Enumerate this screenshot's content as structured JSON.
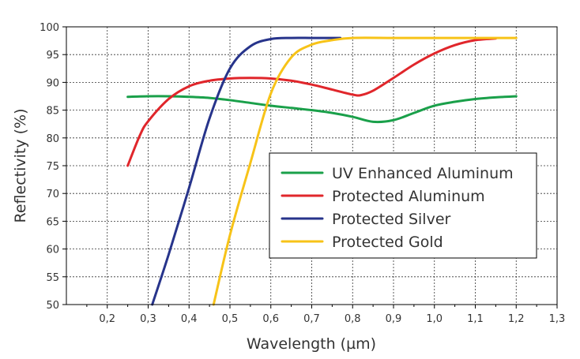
{
  "chart_data": {
    "type": "line",
    "title": "",
    "xlabel": "Wavelength (µm)",
    "ylabel": "Reflectivity (%)",
    "xlim": [
      0.1,
      1.3
    ],
    "ylim": [
      50,
      100
    ],
    "x_ticks": [
      0.2,
      0.3,
      0.4,
      0.5,
      0.6,
      0.7,
      0.8,
      0.9,
      1.0,
      1.1,
      1.2,
      1.3
    ],
    "x_tick_labels": [
      "0,2",
      "0,3",
      "0,4",
      "0,5",
      "0,6",
      "0,7",
      "0,8",
      "0,9",
      "1,0",
      "1,1",
      "1,2",
      "1,3"
    ],
    "y_ticks": [
      50,
      55,
      60,
      65,
      70,
      75,
      80,
      85,
      90,
      95,
      100
    ],
    "y_tick_labels": [
      "50",
      "55",
      "60",
      "65",
      "70",
      "75",
      "80",
      "85",
      "90",
      "95",
      "100"
    ],
    "grid": true,
    "legend_position": "right",
    "series": [
      {
        "name": "UV Enhanced Aluminum",
        "color": "#1aa04a",
        "x": [
          0.25,
          0.3,
          0.35,
          0.4,
          0.45,
          0.5,
          0.55,
          0.6,
          0.65,
          0.7,
          0.75,
          0.8,
          0.85,
          0.9,
          0.95,
          1.0,
          1.05,
          1.1,
          1.15,
          1.2
        ],
        "y": [
          87.4,
          87.5,
          87.5,
          87.4,
          87.2,
          86.8,
          86.3,
          85.8,
          85.4,
          85.0,
          84.5,
          83.8,
          82.9,
          83.2,
          84.5,
          85.8,
          86.5,
          87.0,
          87.3,
          87.5
        ]
      },
      {
        "name": "Protected Aluminum",
        "color": "#e0262b",
        "x": [
          0.25,
          0.28,
          0.3,
          0.35,
          0.4,
          0.45,
          0.5,
          0.55,
          0.6,
          0.65,
          0.7,
          0.75,
          0.8,
          0.82,
          0.85,
          0.9,
          0.95,
          1.0,
          1.05,
          1.1,
          1.15
        ],
        "y": [
          75.0,
          80.5,
          83.0,
          87.0,
          89.3,
          90.3,
          90.7,
          90.8,
          90.7,
          90.3,
          89.6,
          88.7,
          87.8,
          87.7,
          88.5,
          90.8,
          93.2,
          95.2,
          96.7,
          97.6,
          97.9
        ]
      },
      {
        "name": "Protected Silver",
        "color": "#27348b",
        "x": [
          0.31,
          0.35,
          0.4,
          0.45,
          0.5,
          0.55,
          0.6,
          0.65,
          0.7,
          0.75,
          0.77
        ],
        "y": [
          50.0,
          59.0,
          71.0,
          83.5,
          92.5,
          96.5,
          97.8,
          98.0,
          98.0,
          98.0,
          98.0
        ]
      },
      {
        "name": "Protected Gold",
        "color": "#f7c318",
        "x": [
          0.46,
          0.5,
          0.55,
          0.6,
          0.65,
          0.7,
          0.75,
          0.8,
          0.9,
          1.0,
          1.1,
          1.2
        ],
        "y": [
          50.0,
          62.5,
          75.5,
          88.0,
          94.5,
          96.8,
          97.6,
          98.0,
          98.0,
          98.0,
          98.0,
          98.0
        ]
      }
    ]
  }
}
